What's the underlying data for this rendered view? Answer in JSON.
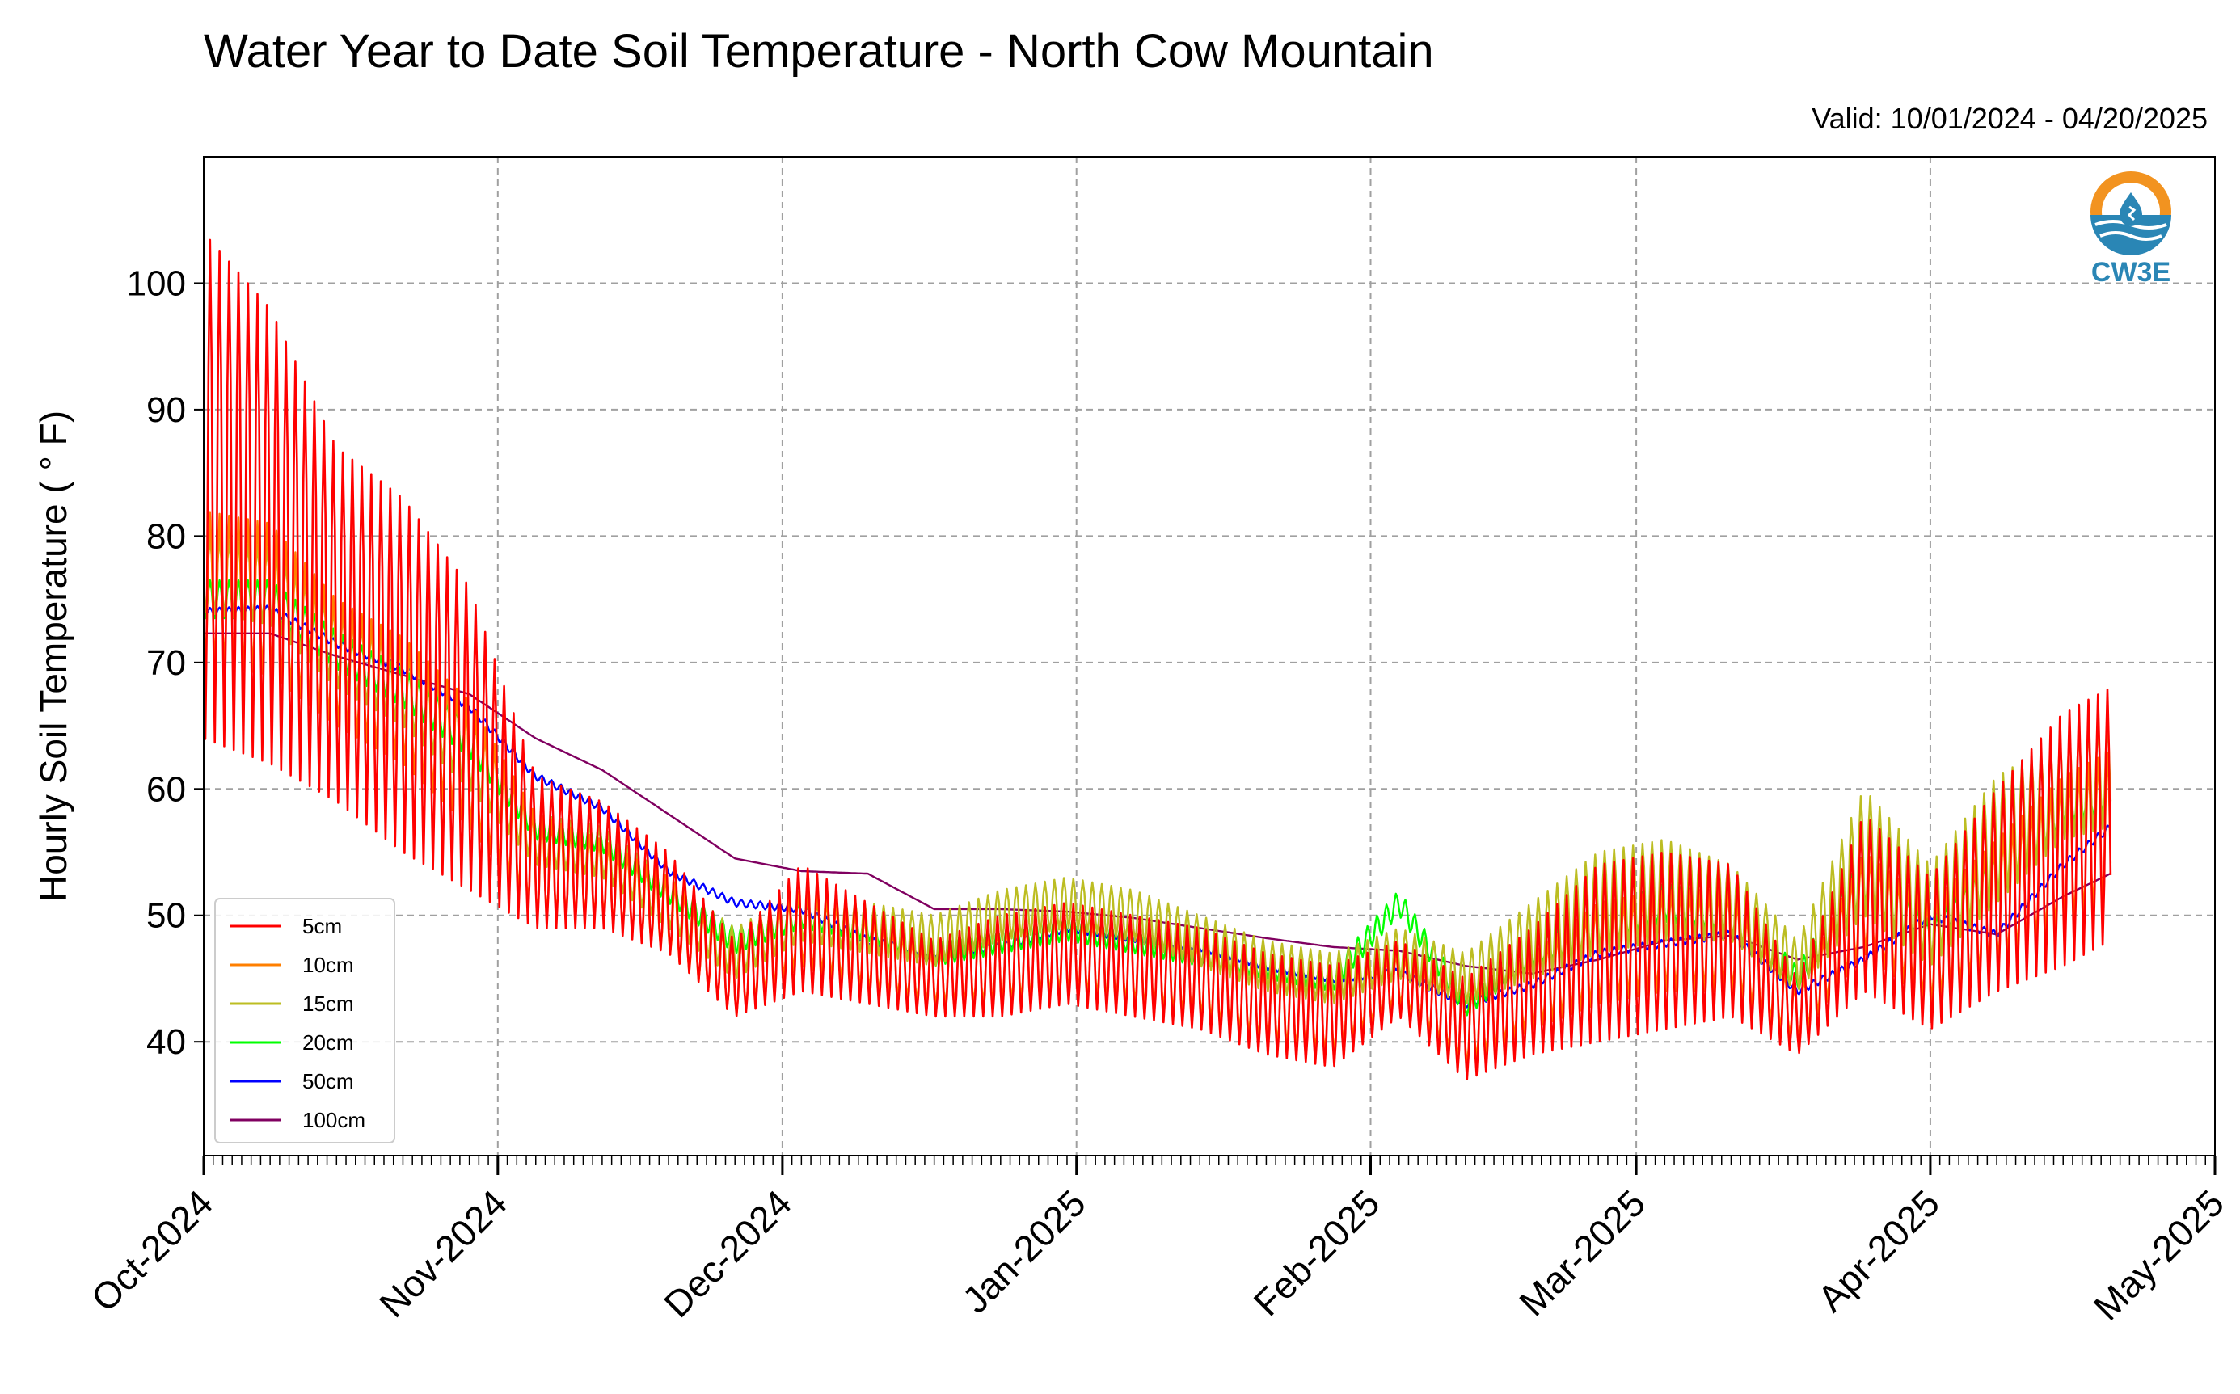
{
  "title": "Water Year to Date Soil Temperature - North Cow Mountain",
  "valid": {
    "label": "Valid:",
    "range": "10/01/2024 - 04/20/2025"
  },
  "logo": {
    "text": "CW3E",
    "icon": "water-drop-sun-icon",
    "colors": {
      "ring": "#f29320",
      "water": "#2a86b5",
      "text": "#2a86b5"
    }
  },
  "chart_data": {
    "type": "line",
    "title": "Water Year to Date Soil Temperature - North Cow Mountain",
    "xlabel": "",
    "ylabel": "Hourly Soil Temperature ( ° F)",
    "xlim": [
      "2024-10-01",
      "2025-05-01"
    ],
    "ylim": [
      31,
      110
    ],
    "yticks": [
      40,
      50,
      60,
      70,
      80,
      90,
      100
    ],
    "xticks": [
      {
        "date": "2024-10-01",
        "label": "Oct-2024"
      },
      {
        "date": "2024-11-01",
        "label": "Nov-2024"
      },
      {
        "date": "2024-12-01",
        "label": "Dec-2024"
      },
      {
        "date": "2025-01-01",
        "label": "Jan-2025"
      },
      {
        "date": "2025-02-01",
        "label": "Feb-2025"
      },
      {
        "date": "2025-03-01",
        "label": "Mar-2025"
      },
      {
        "date": "2025-04-01",
        "label": "Apr-2025"
      },
      {
        "date": "2025-05-01",
        "label": "May-2025"
      }
    ],
    "grid": true,
    "legend_position": "lower-left",
    "series": [
      {
        "name": "5cm",
        "color": "#ff0000",
        "x": [
          "2024-10-01",
          "2024-10-08",
          "2024-10-15",
          "2024-10-22",
          "2024-10-29",
          "2024-11-05",
          "2024-11-12",
          "2024-11-19",
          "2024-11-26",
          "2024-12-03",
          "2024-12-10",
          "2024-12-17",
          "2024-12-24",
          "2024-12-31",
          "2025-01-07",
          "2025-01-14",
          "2025-01-21",
          "2025-01-28",
          "2025-02-04",
          "2025-02-11",
          "2025-02-18",
          "2025-02-25",
          "2025-03-04",
          "2025-03-11",
          "2025-03-18",
          "2025-03-25",
          "2025-04-01",
          "2025-04-08",
          "2025-04-15",
          "2025-04-20"
        ],
        "mean": [
          84,
          80,
          73,
          69,
          64,
          55,
          54,
          51,
          45,
          49,
          47,
          45,
          46,
          47,
          46,
          45,
          43,
          42,
          45,
          41,
          44,
          47,
          48,
          48,
          42,
          51,
          47,
          52,
          56,
          58
        ],
        "amp": [
          20,
          18,
          14,
          14,
          12,
          6,
          5,
          4,
          3,
          5,
          4,
          3,
          4,
          4,
          4,
          4,
          4,
          4,
          3,
          4,
          5,
          7,
          7,
          6,
          3,
          7,
          6,
          8,
          10,
          10
        ]
      },
      {
        "name": "10cm",
        "color": "#ff7f00",
        "x": [
          "2024-10-01",
          "2024-10-08",
          "2024-10-15",
          "2024-10-22",
          "2024-10-29",
          "2024-11-05",
          "2024-11-12",
          "2024-11-19",
          "2024-11-26",
          "2024-12-03",
          "2024-12-10",
          "2024-12-17",
          "2024-12-24",
          "2024-12-31",
          "2025-01-07",
          "2025-01-14",
          "2025-01-21",
          "2025-01-28",
          "2025-02-04",
          "2025-02-11",
          "2025-02-18",
          "2025-02-25",
          "2025-03-04",
          "2025-03-11",
          "2025-03-18",
          "2025-03-25",
          "2025-04-01",
          "2025-04-08",
          "2025-04-15",
          "2025-04-20"
        ],
        "mean": [
          76,
          75,
          70,
          67,
          62,
          54,
          53,
          50,
          45,
          49,
          47,
          45,
          46,
          47,
          46,
          45,
          43,
          42,
          45,
          41,
          44,
          47,
          48,
          48,
          42,
          51,
          47,
          51,
          55,
          57
        ],
        "amp": [
          6,
          6,
          5,
          5,
          5,
          4,
          3,
          3,
          3,
          3,
          3,
          2,
          3,
          3,
          3,
          3,
          3,
          3,
          2,
          3,
          3,
          4,
          4,
          4,
          2,
          4,
          4,
          5,
          6,
          6
        ]
      },
      {
        "name": "15cm",
        "color": "#bcbd22",
        "x": [
          "2024-10-01",
          "2024-10-08",
          "2024-10-15",
          "2024-10-22",
          "2024-10-29",
          "2024-11-05",
          "2024-11-12",
          "2024-11-19",
          "2024-11-26",
          "2024-12-03",
          "2024-12-10",
          "2024-12-17",
          "2024-12-24",
          "2024-12-31",
          "2025-01-07",
          "2025-01-14",
          "2025-01-21",
          "2025-01-28",
          "2025-02-04",
          "2025-02-11",
          "2025-02-18",
          "2025-02-25",
          "2025-03-04",
          "2025-03-11",
          "2025-03-18",
          "2025-03-25",
          "2025-04-01",
          "2025-04-08",
          "2025-04-15",
          "2025-04-20"
        ],
        "mean": [
          77,
          76,
          71,
          68,
          63,
          56,
          55,
          51,
          47,
          50,
          49,
          48,
          50,
          51,
          50,
          48,
          46,
          45,
          47,
          45,
          48,
          51,
          52,
          51,
          46,
          55,
          50,
          56,
          60,
          61
        ],
        "amp": [
          3,
          3,
          3,
          3,
          3,
          2,
          2,
          2,
          2,
          2,
          2,
          2,
          2,
          2,
          2,
          2,
          2,
          2,
          2,
          2,
          3,
          4,
          4,
          3,
          2,
          5,
          4,
          5,
          4,
          4
        ]
      },
      {
        "name": "20cm",
        "color": "#00ff00",
        "x": [
          "2024-10-01",
          "2024-10-08",
          "2024-10-15",
          "2024-10-22",
          "2024-10-29",
          "2024-11-05",
          "2024-11-12",
          "2024-11-19",
          "2024-11-26",
          "2024-12-03",
          "2024-12-10",
          "2024-12-17",
          "2024-12-24",
          "2024-12-31",
          "2025-01-07",
          "2025-01-14",
          "2025-01-21",
          "2025-01-28",
          "2025-02-04",
          "2025-02-11",
          "2025-02-18",
          "2025-02-25",
          "2025-03-04",
          "2025-03-11",
          "2025-03-18",
          "2025-03-25",
          "2025-04-01",
          "2025-04-08",
          "2025-04-15",
          "2025-04-20"
        ],
        "mean": [
          75,
          75,
          71,
          68,
          64,
          57,
          56,
          52,
          48,
          50,
          49,
          47,
          48,
          49,
          48,
          47,
          46,
          45,
          51,
          43,
          47,
          49,
          51,
          50,
          45,
          53,
          48,
          53,
          59,
          60
        ],
        "amp": [
          1.5,
          1.5,
          1.5,
          1.5,
          1.5,
          1,
          1,
          1,
          1,
          1,
          1,
          1,
          1,
          1,
          1,
          1,
          1,
          1,
          1,
          1,
          1,
          1.5,
          1.5,
          1.5,
          1,
          2,
          1.5,
          2,
          2,
          2
        ]
      },
      {
        "name": "50cm",
        "color": "#0000ff",
        "x": [
          "2024-10-01",
          "2024-10-08",
          "2024-10-15",
          "2024-10-22",
          "2024-10-29",
          "2024-11-05",
          "2024-11-12",
          "2024-11-19",
          "2024-11-26",
          "2024-12-03",
          "2024-12-10",
          "2024-12-17",
          "2024-12-24",
          "2024-12-31",
          "2025-01-07",
          "2025-01-14",
          "2025-01-21",
          "2025-01-28",
          "2025-02-04",
          "2025-02-11",
          "2025-02-18",
          "2025-02-25",
          "2025-03-04",
          "2025-03-11",
          "2025-03-18",
          "2025-03-25",
          "2025-04-01",
          "2025-04-08",
          "2025-04-15",
          "2025-04-20"
        ],
        "mean": [
          74,
          74.2,
          71.5,
          69.5,
          66.5,
          61,
          58.5,
          53.5,
          51,
          50.5,
          48,
          47,
          47.5,
          49,
          48.2,
          47.5,
          46,
          45,
          45.5,
          43,
          44.5,
          47,
          47.8,
          48.5,
          44,
          46.5,
          50,
          48.5,
          54,
          57
        ],
        "amp": [
          0.3,
          0.3,
          0.3,
          0.3,
          0.3,
          0.3,
          0.3,
          0.3,
          0.3,
          0.3,
          0.3,
          0.3,
          0.3,
          0.3,
          0.3,
          0.3,
          0.3,
          0.3,
          0.3,
          0.3,
          0.3,
          0.3,
          0.3,
          0.3,
          0.3,
          0.3,
          0.3,
          0.3,
          0.3,
          0.3
        ]
      },
      {
        "name": "100cm",
        "color": "#800060",
        "x": [
          "2024-10-01",
          "2024-10-08",
          "2024-10-15",
          "2024-10-22",
          "2024-10-29",
          "2024-11-05",
          "2024-11-12",
          "2024-11-19",
          "2024-11-26",
          "2024-12-03",
          "2024-12-10",
          "2024-12-17",
          "2024-12-24",
          "2024-12-31",
          "2025-01-07",
          "2025-01-14",
          "2025-01-21",
          "2025-01-28",
          "2025-02-04",
          "2025-02-11",
          "2025-02-18",
          "2025-02-25",
          "2025-03-04",
          "2025-03-11",
          "2025-03-18",
          "2025-03-25",
          "2025-04-01",
          "2025-04-08",
          "2025-04-15",
          "2025-04-20"
        ],
        "mean": [
          72.3,
          72.3,
          70.5,
          69,
          67.5,
          64,
          61.5,
          58,
          54.5,
          53.5,
          53.3,
          50.5,
          50.5,
          50.3,
          49.8,
          49,
          48.2,
          47.5,
          47.2,
          46,
          45.4,
          46.5,
          48,
          48.4,
          46.5,
          47.5,
          49.3,
          48.5,
          51.5,
          53.3
        ],
        "amp": [
          0,
          0,
          0,
          0,
          0,
          0,
          0,
          0,
          0,
          0,
          0,
          0,
          0,
          0,
          0,
          0,
          0,
          0,
          0,
          0,
          0,
          0,
          0,
          0,
          0,
          0,
          0,
          0,
          0,
          0
        ]
      }
    ]
  }
}
